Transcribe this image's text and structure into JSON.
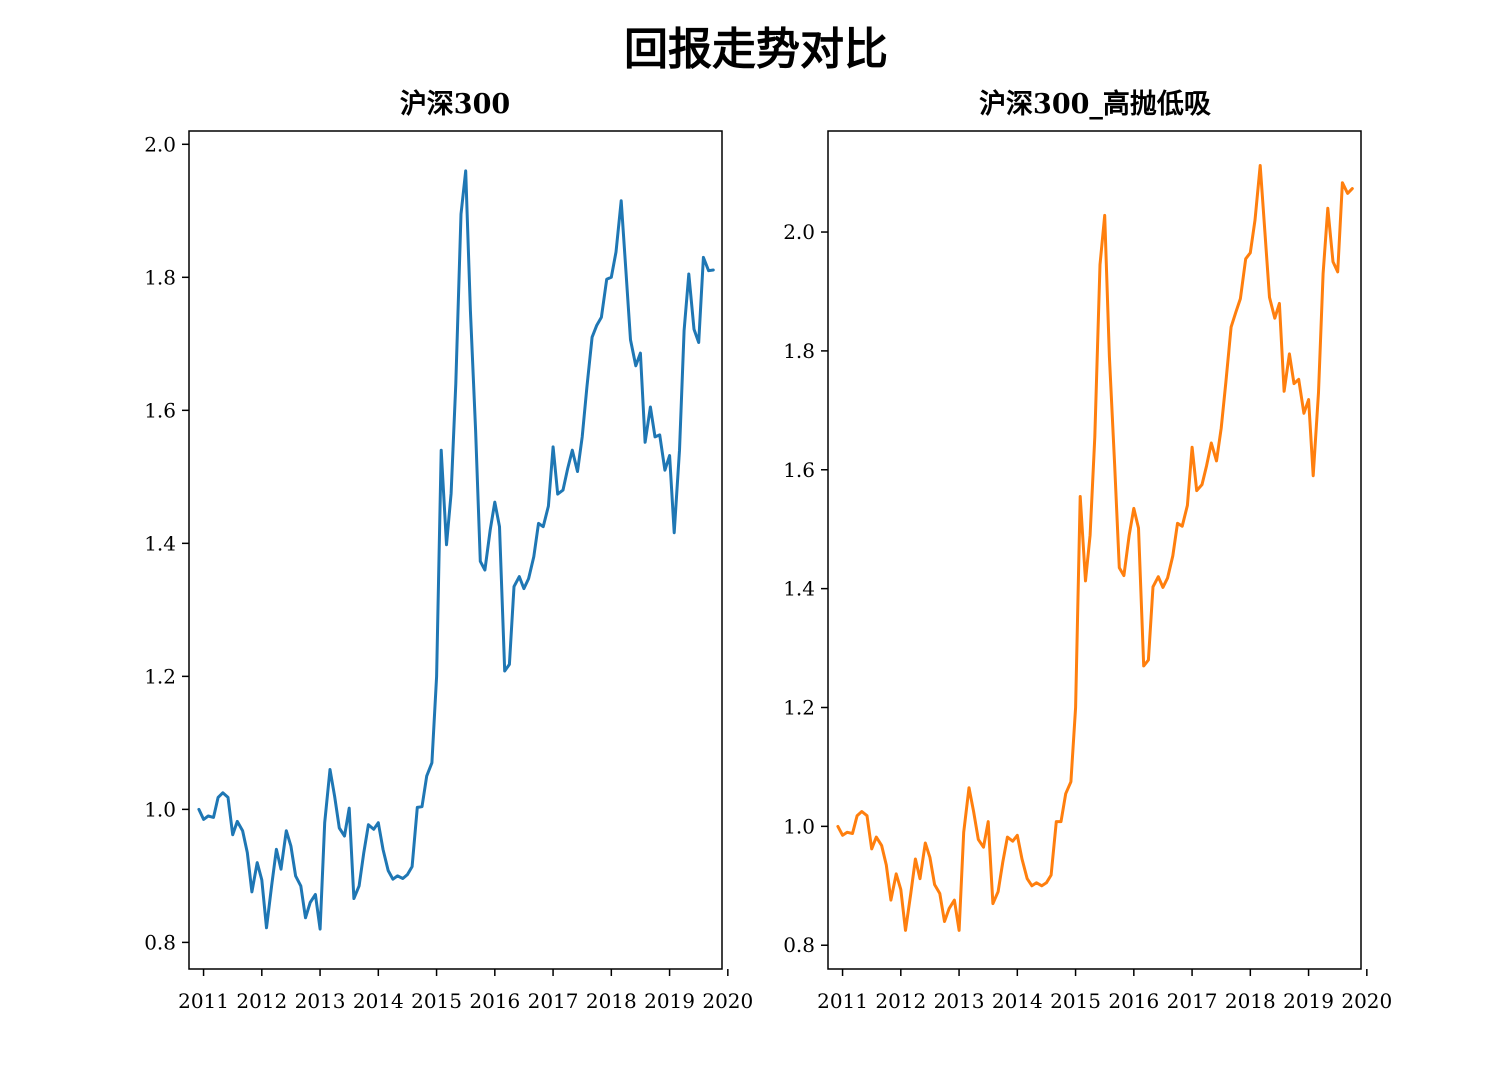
{
  "figure": {
    "title": "回报走势对比"
  },
  "chart_data": [
    {
      "type": "line",
      "title": "沪深300",
      "xlabel": "",
      "ylabel": "",
      "color": "#1f77b4",
      "xlim": [
        2010.75,
        2019.9
      ],
      "ylim": [
        0.76,
        2.02
      ],
      "x_ticks": [
        2011,
        2012,
        2013,
        2014,
        2015,
        2016,
        2017,
        2018,
        2019,
        2020
      ],
      "y_ticks": [
        "0.8",
        "1.0",
        "1.2",
        "1.4",
        "1.6",
        "1.8",
        "2.0"
      ],
      "grid": false,
      "x": [
        2010.92,
        2011.0,
        2011.08,
        2011.17,
        2011.25,
        2011.33,
        2011.42,
        2011.5,
        2011.58,
        2011.67,
        2011.75,
        2011.83,
        2011.92,
        2012.0,
        2012.08,
        2012.17,
        2012.25,
        2012.33,
        2012.42,
        2012.5,
        2012.58,
        2012.67,
        2012.75,
        2012.83,
        2012.92,
        2013.0,
        2013.08,
        2013.17,
        2013.25,
        2013.33,
        2013.42,
        2013.5,
        2013.58,
        2013.67,
        2013.75,
        2013.83,
        2013.92,
        2014.0,
        2014.08,
        2014.17,
        2014.25,
        2014.33,
        2014.42,
        2014.5,
        2014.58,
        2014.67,
        2014.75,
        2014.83,
        2014.92,
        2015.0,
        2015.08,
        2015.17,
        2015.25,
        2015.33,
        2015.42,
        2015.5,
        2015.58,
        2015.67,
        2015.75,
        2015.83,
        2015.92,
        2016.0,
        2016.08,
        2016.17,
        2016.25,
        2016.33,
        2016.42,
        2016.5,
        2016.58,
        2016.67,
        2016.75,
        2016.83,
        2016.92,
        2017.0,
        2017.08,
        2017.17,
        2017.25,
        2017.33,
        2017.42,
        2017.5,
        2017.58,
        2017.67,
        2017.75,
        2017.83,
        2017.92,
        2018.0,
        2018.08,
        2018.17,
        2018.25,
        2018.33,
        2018.42,
        2018.5,
        2018.58,
        2018.67,
        2018.75,
        2018.83,
        2018.92,
        2019.0,
        2019.08,
        2019.17,
        2019.25,
        2019.33,
        2019.42,
        2019.5,
        2019.58,
        2019.67,
        2019.75
      ],
      "series": [
        {
          "values": [
            1.0,
            0.985,
            0.99,
            0.988,
            1.018,
            1.025,
            1.018,
            0.962,
            0.982,
            0.968,
            0.935,
            0.876,
            0.92,
            0.894,
            0.822,
            0.886,
            0.94,
            0.91,
            0.968,
            0.945,
            0.9,
            0.885,
            0.837,
            0.86,
            0.872,
            0.82,
            0.98,
            1.06,
            1.02,
            0.972,
            0.96,
            1.002,
            0.866,
            0.885,
            0.935,
            0.977,
            0.97,
            0.98,
            0.94,
            0.908,
            0.895,
            0.9,
            0.896,
            0.902,
            0.914,
            1.003,
            1.004,
            1.05,
            1.07,
            1.2,
            1.54,
            1.398,
            1.475,
            1.64,
            1.895,
            1.96,
            1.75,
            1.57,
            1.373,
            1.36,
            1.42,
            1.462,
            1.425,
            1.208,
            1.218,
            1.335,
            1.35,
            1.332,
            1.347,
            1.38,
            1.43,
            1.425,
            1.456,
            1.545,
            1.474,
            1.48,
            1.512,
            1.54,
            1.508,
            1.56,
            1.635,
            1.71,
            1.728,
            1.74,
            1.797,
            1.8,
            1.838,
            1.915,
            1.81,
            1.706,
            1.667,
            1.686,
            1.552,
            1.605,
            1.56,
            1.563,
            1.51,
            1.532,
            1.416,
            1.54,
            1.72,
            1.805,
            1.722,
            1.702,
            1.83,
            1.81,
            1.811
          ]
        }
      ]
    },
    {
      "type": "line",
      "title": "沪深300_高抛低吸",
      "xlabel": "",
      "ylabel": "",
      "color": "#ff7f0e",
      "xlim": [
        2010.75,
        2019.9
      ],
      "ylim": [
        0.76,
        2.17
      ],
      "x_ticks": [
        2011,
        2012,
        2013,
        2014,
        2015,
        2016,
        2017,
        2018,
        2019,
        2020
      ],
      "y_ticks": [
        "0.8",
        "1.0",
        "1.2",
        "1.4",
        "1.6",
        "1.8",
        "2.0"
      ],
      "grid": false,
      "x": [
        2010.92,
        2011.0,
        2011.08,
        2011.17,
        2011.25,
        2011.33,
        2011.42,
        2011.5,
        2011.58,
        2011.67,
        2011.75,
        2011.83,
        2011.92,
        2012.0,
        2012.08,
        2012.17,
        2012.25,
        2012.33,
        2012.42,
        2012.5,
        2012.58,
        2012.67,
        2012.75,
        2012.83,
        2012.92,
        2013.0,
        2013.08,
        2013.17,
        2013.25,
        2013.33,
        2013.42,
        2013.5,
        2013.58,
        2013.67,
        2013.75,
        2013.83,
        2013.92,
        2014.0,
        2014.08,
        2014.17,
        2014.25,
        2014.33,
        2014.42,
        2014.5,
        2014.58,
        2014.67,
        2014.75,
        2014.83,
        2014.92,
        2015.0,
        2015.08,
        2015.17,
        2015.25,
        2015.33,
        2015.42,
        2015.5,
        2015.58,
        2015.67,
        2015.75,
        2015.83,
        2015.92,
        2016.0,
        2016.08,
        2016.17,
        2016.25,
        2016.33,
        2016.42,
        2016.5,
        2016.58,
        2016.67,
        2016.75,
        2016.83,
        2016.92,
        2017.0,
        2017.08,
        2017.17,
        2017.25,
        2017.33,
        2017.42,
        2017.5,
        2017.58,
        2017.67,
        2017.75,
        2017.83,
        2017.92,
        2018.0,
        2018.08,
        2018.17,
        2018.25,
        2018.33,
        2018.42,
        2018.5,
        2018.58,
        2018.67,
        2018.75,
        2018.83,
        2018.92,
        2019.0,
        2019.08,
        2019.17,
        2019.25,
        2019.33,
        2019.42,
        2019.5,
        2019.58,
        2019.67,
        2019.75
      ],
      "series": [
        {
          "values": [
            1.0,
            0.985,
            0.99,
            0.988,
            1.018,
            1.025,
            1.018,
            0.962,
            0.982,
            0.968,
            0.935,
            0.876,
            0.92,
            0.894,
            0.825,
            0.886,
            0.945,
            0.912,
            0.972,
            0.948,
            0.902,
            0.887,
            0.84,
            0.862,
            0.876,
            0.825,
            0.99,
            1.065,
            1.025,
            0.978,
            0.965,
            1.008,
            0.87,
            0.89,
            0.94,
            0.982,
            0.975,
            0.985,
            0.945,
            0.912,
            0.9,
            0.905,
            0.9,
            0.905,
            0.918,
            1.008,
            1.008,
            1.055,
            1.075,
            1.2,
            1.555,
            1.413,
            1.49,
            1.655,
            1.945,
            2.028,
            1.79,
            1.61,
            1.435,
            1.422,
            1.49,
            1.535,
            1.502,
            1.27,
            1.28,
            1.403,
            1.42,
            1.402,
            1.418,
            1.455,
            1.51,
            1.505,
            1.54,
            1.638,
            1.565,
            1.575,
            1.607,
            1.645,
            1.615,
            1.67,
            1.748,
            1.84,
            1.865,
            1.888,
            1.955,
            1.965,
            2.02,
            2.112,
            2.0,
            1.89,
            1.855,
            1.88,
            1.732,
            1.795,
            1.745,
            1.752,
            1.695,
            1.718,
            1.59,
            1.73,
            1.93,
            2.04,
            1.95,
            1.933,
            2.083,
            2.065,
            2.073
          ]
        }
      ]
    }
  ]
}
